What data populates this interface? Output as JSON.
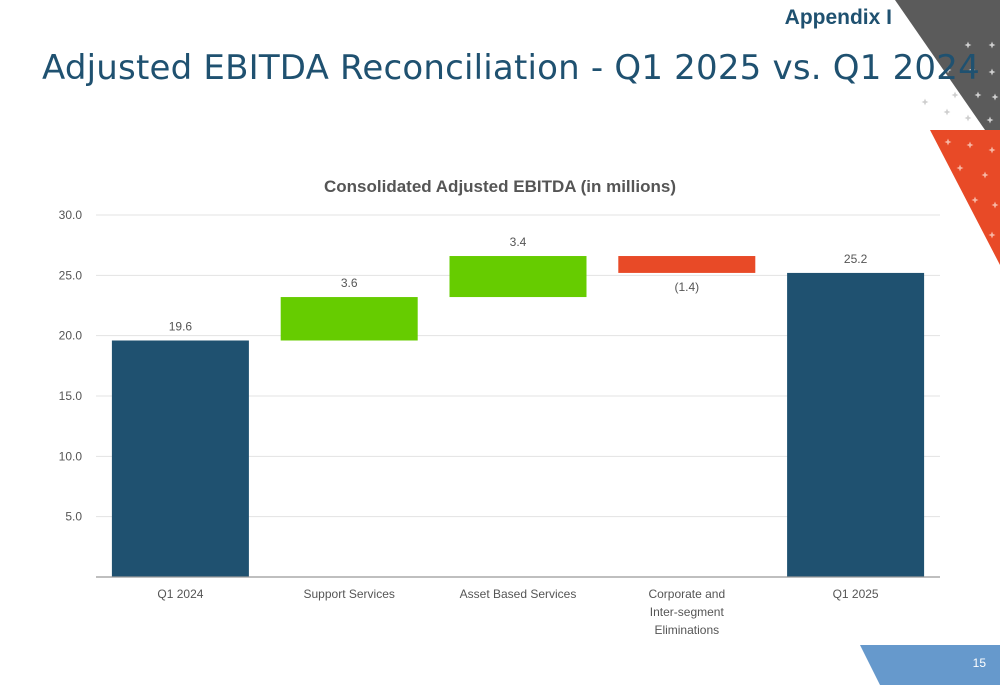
{
  "header": {
    "section_label": "Appendix I",
    "title": "Adjusted EBITDA Reconciliation - Q1 2025 vs. Q1 2024"
  },
  "footer": {
    "page_number": "15"
  },
  "colors": {
    "title": "#1f5170",
    "total": "#1f5170",
    "increase": "#66cc00",
    "decrease": "#e84a27",
    "corner_gray": "#5b5b5b",
    "corner_red": "#e84a27",
    "footer_blue": "#6699cc"
  },
  "chart_data": {
    "type": "bar",
    "subtype": "waterfall",
    "title": "Consolidated Adjusted EBITDA (in millions)",
    "xlabel": "",
    "ylabel": "",
    "ylim": [
      0,
      30
    ],
    "yticks": [
      5,
      10,
      15,
      20,
      25,
      30
    ],
    "ytick_labels": [
      "5.0",
      "10.0",
      "15.0",
      "20.0",
      "25.0",
      "30.0"
    ],
    "grid": true,
    "legend": "none",
    "categories": [
      [
        "Q1 2024"
      ],
      [
        "Support Services"
      ],
      [
        "Asset Based Services"
      ],
      [
        "Corporate and",
        "Inter-segment",
        "Eliminations"
      ],
      [
        "Q1 2025"
      ]
    ],
    "bars": [
      {
        "kind": "total",
        "start": 0,
        "end": 19.6,
        "value": 19.6,
        "label": "19.6"
      },
      {
        "kind": "increase",
        "start": 19.6,
        "end": 23.2,
        "value": 3.6,
        "label": "3.6"
      },
      {
        "kind": "increase",
        "start": 23.2,
        "end": 26.6,
        "value": 3.4,
        "label": "3.4"
      },
      {
        "kind": "decrease",
        "start": 26.6,
        "end": 25.2,
        "value": -1.4,
        "label": "(1.4)"
      },
      {
        "kind": "total",
        "start": 0,
        "end": 25.2,
        "value": 25.2,
        "label": "25.2"
      }
    ]
  }
}
